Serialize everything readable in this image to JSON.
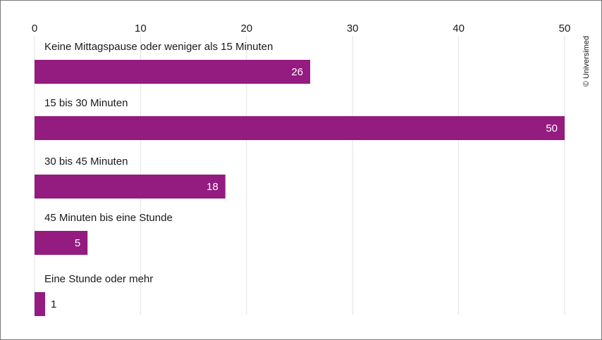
{
  "colors": {
    "bar": "#941b80",
    "grid": "#e2e2e2",
    "text": "#1a1a1a"
  },
  "credit": "© Universimed",
  "chart_data": {
    "type": "bar",
    "orientation": "horizontal",
    "categories": [
      "Keine Mittagspause oder weniger als 15 Minuten",
      "15 bis 30 Minuten",
      "30 bis 45 Minuten",
      "45 Minuten bis eine Stunde",
      "Eine Stunde oder mehr"
    ],
    "values": [
      26,
      50,
      18,
      5,
      1
    ],
    "value_labels": [
      "26",
      "50",
      "18",
      "5",
      "1"
    ],
    "xlim": [
      0,
      50
    ],
    "xticks": [
      "0",
      "10",
      "20",
      "30",
      "40",
      "50"
    ],
    "axis_position": "top",
    "grid": true,
    "title": "",
    "xlabel": "",
    "ylabel": ""
  }
}
